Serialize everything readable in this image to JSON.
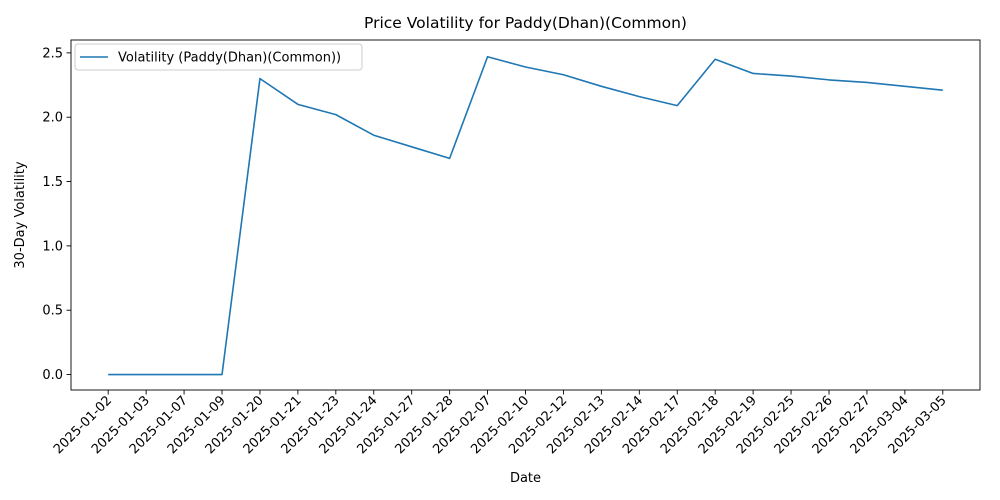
{
  "chart_data": {
    "type": "line",
    "title": "Price Volatility for Paddy(Dhan)(Common)",
    "xlabel": "Date",
    "ylabel": "30-Day Volatility",
    "categories": [
      "2025-01-02",
      "2025-01-03",
      "2025-01-07",
      "2025-01-09",
      "2025-01-20",
      "2025-01-21",
      "2025-01-23",
      "2025-01-24",
      "2025-01-27",
      "2025-01-28",
      "2025-02-07",
      "2025-02-10",
      "2025-02-12",
      "2025-02-13",
      "2025-02-14",
      "2025-02-17",
      "2025-02-18",
      "2025-02-19",
      "2025-02-25",
      "2025-02-26",
      "2025-02-27",
      "2025-03-04",
      "2025-03-05"
    ],
    "series": [
      {
        "name": "Volatility (Paddy(Dhan)(Common))",
        "color": "#1f77b4",
        "values": [
          0.0,
          0.0,
          0.0,
          0.0,
          2.3,
          2.1,
          2.02,
          1.86,
          1.77,
          1.68,
          2.47,
          2.39,
          2.33,
          2.24,
          2.16,
          2.09,
          2.45,
          2.34,
          2.32,
          2.29,
          2.27,
          2.24,
          2.21
        ]
      }
    ],
    "ylim": [
      -0.12,
      2.6
    ],
    "yticks": [
      0.0,
      0.5,
      1.0,
      1.5,
      2.0,
      2.5
    ],
    "ytick_labels": [
      "0.0",
      "0.5",
      "1.0",
      "1.5",
      "2.0",
      "2.5"
    ],
    "grid": false,
    "legend_position": "upper-left"
  }
}
